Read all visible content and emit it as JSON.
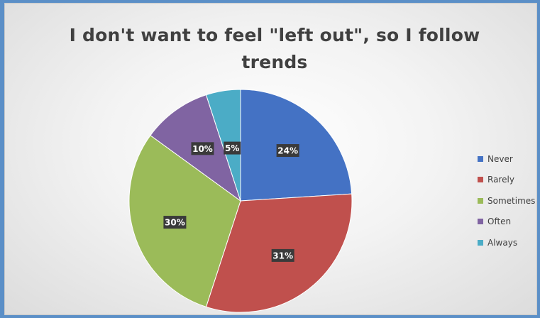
{
  "chart_data": {
    "type": "pie",
    "title": "I don't want to feel \"left out\", so I follow trends",
    "categories": [
      "Never",
      "Rarely",
      "Sometimes",
      "Often",
      "Always"
    ],
    "values": [
      24,
      31,
      30,
      10,
      5
    ],
    "labels": [
      "24%",
      "31%",
      "30%",
      "10%",
      "5%"
    ],
    "colors": [
      "#4472c4",
      "#c0504d",
      "#9bbb59",
      "#8064a2",
      "#4bacc6"
    ],
    "legend_position": "right",
    "start_angle_deg": 0,
    "direction": "clockwise"
  }
}
